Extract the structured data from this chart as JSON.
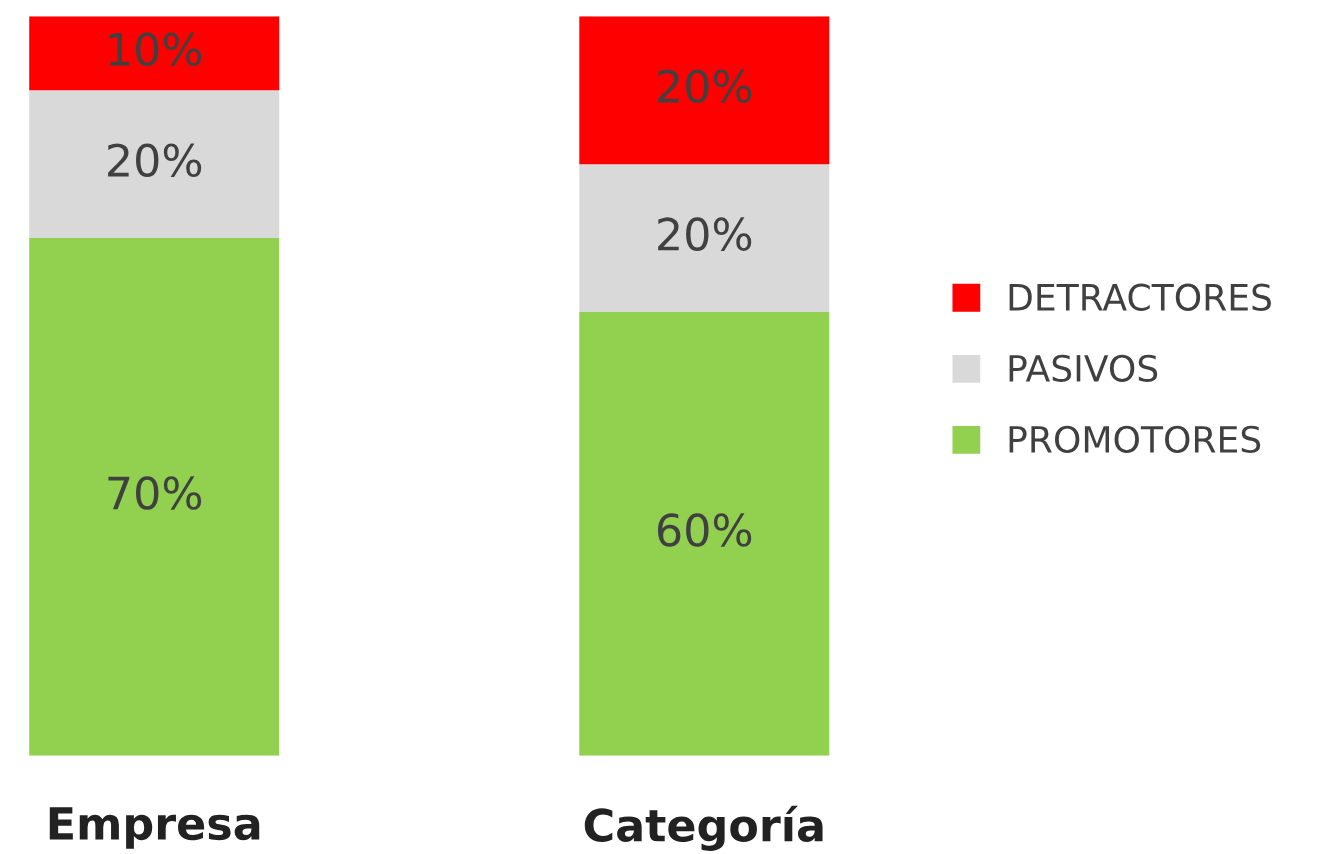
{
  "chart_data": {
    "type": "bar",
    "stacked": true,
    "categories": [
      "Empresa",
      "Categoría"
    ],
    "series": [
      {
        "name": "PROMOTORES",
        "color": "#92d050",
        "values": [
          70,
          60
        ],
        "value_labels": [
          "70%",
          "60%"
        ]
      },
      {
        "name": "PASIVOS",
        "color": "#d9d9d9",
        "values": [
          20,
          20
        ],
        "value_labels": [
          "20%",
          "20%"
        ]
      },
      {
        "name": "DETRACTORES",
        "color": "#ff0000",
        "values": [
          10,
          20
        ],
        "value_labels": [
          "10%",
          "20%"
        ]
      }
    ],
    "legend": "right",
    "grid": false
  }
}
